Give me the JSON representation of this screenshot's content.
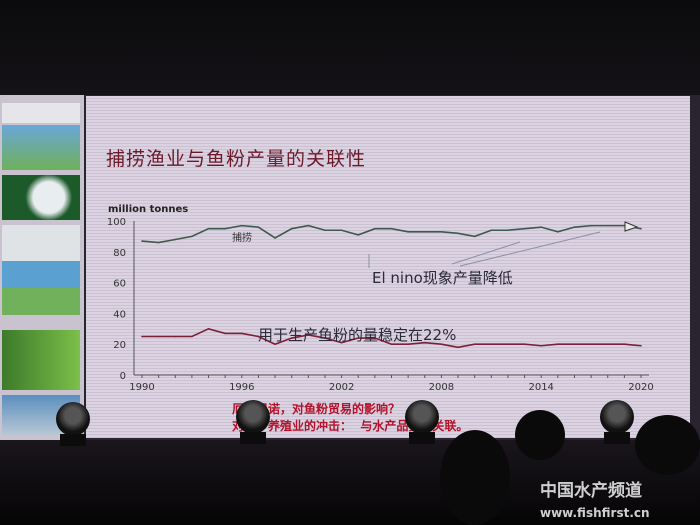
{
  "slide": {
    "title": "捕捞渔业与鱼粉产量的关联性",
    "bottom_line1": "厄尔尼诺，对鱼粉贸易的影响？",
    "bottom_line2": "对水产养殖业的冲击：  与水产品贸易关联。"
  },
  "watermark": {
    "line1": "中国水产频道",
    "line2": "www.fishfirst.cn"
  },
  "chart_data": {
    "type": "line",
    "ylabel": "million tonnes",
    "xlabel": "",
    "xlim": [
      1990,
      2020
    ],
    "ylim": [
      0,
      100
    ],
    "x_ticks": [
      1990,
      1996,
      2002,
      2008,
      2014,
      2020
    ],
    "y_ticks": [
      0,
      20,
      40,
      60,
      80,
      100
    ],
    "x": [
      1990,
      1991,
      1992,
      1993,
      1994,
      1995,
      1996,
      1997,
      1998,
      1999,
      2000,
      2001,
      2002,
      2003,
      2004,
      2005,
      2006,
      2007,
      2008,
      2009,
      2010,
      2011,
      2012,
      2013,
      2014,
      2015,
      2016,
      2017,
      2018,
      2019,
      2020
    ],
    "series": [
      {
        "name": "捕捞",
        "color": "#3c5a4e",
        "values": [
          87,
          86,
          88,
          90,
          95,
          95,
          97,
          96,
          89,
          95,
          97,
          94,
          94,
          91,
          95,
          95,
          93,
          93,
          93,
          92,
          90,
          94,
          94,
          95,
          96,
          93,
          96,
          97,
          97,
          97,
          95
        ]
      },
      {
        "color": "#7a2038",
        "values": [
          25,
          25,
          25,
          25,
          30,
          27,
          27,
          25,
          20,
          24,
          26,
          24,
          21,
          24,
          24,
          20,
          20,
          21,
          20,
          18,
          20,
          20,
          20,
          20,
          19,
          20,
          20,
          20,
          20,
          20,
          19
        ]
      }
    ],
    "annotations": [
      "El nino现象产量降低",
      "用于生产鱼粉的量稳定在22%"
    ],
    "grid": false
  }
}
